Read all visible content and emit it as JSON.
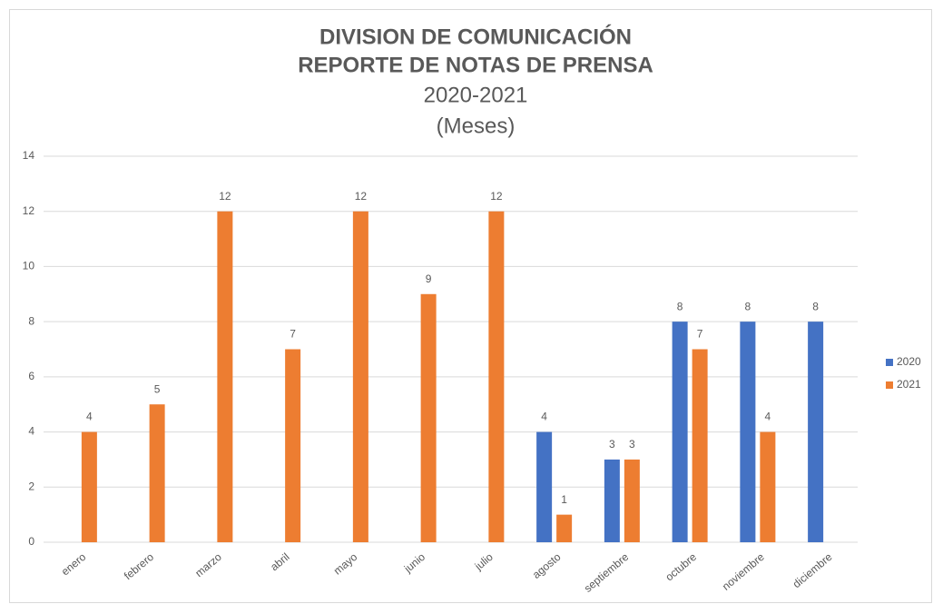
{
  "chart_data": {
    "type": "bar",
    "title": [
      "DIVISION DE COMUNICACIÓN",
      "REPORTE DE NOTAS DE PRENSA",
      "2020-2021",
      "(Meses)"
    ],
    "categories": [
      "enero",
      "febrero",
      "marzo",
      "abril",
      "mayo",
      "junio",
      "julio",
      "agosto",
      "septiembre",
      "octubre",
      "noviembre",
      "diciembre"
    ],
    "series": [
      {
        "name": "2020",
        "color": "#4472c4",
        "values": [
          null,
          null,
          null,
          null,
          null,
          null,
          null,
          4,
          3,
          8,
          8,
          8
        ]
      },
      {
        "name": "2021",
        "color": "#ed7d31",
        "values": [
          4,
          5,
          12,
          7,
          12,
          9,
          12,
          1,
          3,
          7,
          4,
          null
        ]
      }
    ],
    "ylim": [
      0,
      14
    ],
    "yticks": [
      0,
      2,
      4,
      6,
      8,
      10,
      12,
      14
    ],
    "grid": true,
    "legend": "right"
  }
}
